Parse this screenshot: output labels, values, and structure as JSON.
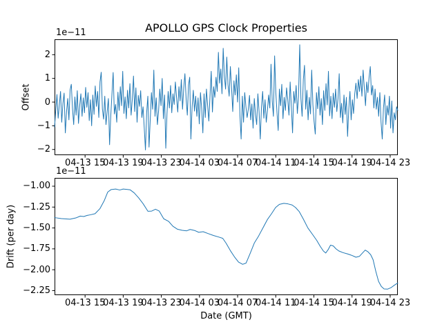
{
  "figure": {
    "background": "#ffffff",
    "line_color": "#1f77b4",
    "spine_color": "#000000"
  },
  "chart_data": [
    {
      "type": "line",
      "id": "offset",
      "title": "APOLLO GPS Clock Properties",
      "ylabel": "Offset",
      "xlabel": "",
      "y_offset_text": "1e−11",
      "y_unit": "1e-11",
      "xlim_hours": [
        11.8,
        47.8
      ],
      "ylim": [
        -2.24,
        2.65
      ],
      "grid": false,
      "legend": "none",
      "y_ticks": [
        {
          "v": 2,
          "label": "2"
        },
        {
          "v": 1,
          "label": "1"
        },
        {
          "v": 0,
          "label": "0"
        },
        {
          "v": -1,
          "label": "−1"
        },
        {
          "v": -2,
          "label": "−2"
        }
      ],
      "x_ticks": [
        {
          "v": 15,
          "label": "04-13 15"
        },
        {
          "v": 19,
          "label": "04-13 19"
        },
        {
          "v": 23,
          "label": "04-13 23"
        },
        {
          "v": 27,
          "label": "04-14 03"
        },
        {
          "v": 31,
          "label": "04-14 07"
        },
        {
          "v": 35,
          "label": "04-14 11"
        },
        {
          "v": 39,
          "label": "04-14 15"
        },
        {
          "v": 43,
          "label": "04-14 19"
        },
        {
          "v": 47,
          "label": "04-14 23"
        }
      ],
      "values_note": "offset in 1e-11 s, evenly spaced 04-13 ~11:50 to 04-14 ~23:50 GMT",
      "values": [
        -1.05,
        -0.35,
        0.32,
        -0.68,
        -0.12,
        0.45,
        -0.85,
        -0.05,
        0.38,
        -1.3,
        -0.42,
        0.15,
        -0.75,
        0.52,
        0.75,
        -0.28,
        -0.95,
        0.22,
        -0.55,
        0.48,
        -0.9,
        -0.15,
        0.35,
        -0.6,
        0.18,
        -0.45,
        0.62,
        -0.22,
        0.4,
        -0.78,
        0.1,
        -1.0,
        0.3,
        -0.52,
        0.68,
        -0.18,
        0.45,
        -0.65,
        0.85,
        1.26,
        -0.3,
        -0.72,
        0.25,
        -0.95,
        -0.4,
        0.15,
        -1.8,
        -0.58,
        0.35,
        1.25,
        -0.5,
        -0.1,
        -0.85,
        0.42,
        -0.35,
        0.65,
        -0.15,
        1.3,
        -0.48,
        0.22,
        -0.7,
        0.5,
        -0.25,
        0.78,
        -0.55,
        0.12,
        1.1,
        -0.4,
        0.6,
        -0.85,
        0.28,
        -0.18,
        0.48,
        -0.65,
        -0.2,
        -1.1,
        -2.02,
        -0.45,
        0.25,
        -1.9,
        -0.75,
        0.4,
        -0.3,
        1.35,
        -0.6,
        0.18,
        -0.95,
        -0.35,
        0.55,
        -0.15,
        1.0,
        -0.7,
        0.3,
        -1.95,
        -0.5,
        0.45,
        -0.25,
        0.7,
        -0.45,
        0.35,
        -0.1,
        0.85,
        0.2,
        -0.42,
        0.65,
        0.05,
        0.95,
        -0.3,
        0.58,
        1.2,
        0.15,
        -0.55,
        0.72,
        1.05,
        -1.56,
        -0.2,
        0.5,
        -0.38,
        0.25,
        -0.6,
        0.18,
        -0.92,
        0.4,
        -0.28,
        -1.3,
        0.35,
        -0.65,
        0.55,
        -0.15,
        -0.8,
        0.3,
        1.3,
        -0.42,
        0.65,
        0.2,
        1.05,
        0.45,
        2.1,
        0.8,
        1.4,
        0.35,
        2.27,
        1.1,
        0.55,
        1.9,
        0.75,
        0.25,
        1.5,
        0.6,
        -0.4,
        0.9,
        0.3,
        1.15,
        0.0,
        1.45,
        -0.55,
        -1.56,
        0.25,
        -0.85,
        0.4,
        -0.2,
        -0.65,
        -0.3,
        0.28,
        -0.75,
        -0.08,
        -1.1,
        0.15,
        -0.52,
        -0.95,
        0.35,
        -0.4,
        -1.56,
        -0.22,
        0.45,
        -0.68,
        0.1,
        -0.85,
        -0.35,
        0.3,
        -0.25,
        1.6,
        0.05,
        -0.6,
        1.95,
        0.4,
        -0.45,
        -1.2,
        0.55,
        -0.15,
        0.75,
        -0.7,
        0.2,
        -0.35,
        0.6,
        0.1,
        -0.55,
        0.85,
        -0.2,
        -1.3,
        0.45,
        -0.05,
        0.7,
        -0.48,
        0.25,
        2.42,
        0.15,
        -0.6,
        0.95,
        1.55,
        -0.3,
        0.5,
        -0.75,
        0.2,
        -0.5,
        1.35,
        -0.1,
        -0.82,
        -1.35,
        0.4,
        -0.28,
        0.65,
        -0.55,
        0.15,
        -0.95,
        0.48,
        -0.35,
        0.78,
        -0.12,
        1.3,
        -0.58,
        0.25,
        -0.7,
        0.38,
        -0.22,
        0.55,
        -0.4,
        0.15,
        1.2,
        -0.65,
        -0.05,
        -0.88,
        0.3,
        -0.52,
        0.2,
        -1.45,
        -0.3,
        0.45,
        -0.75,
        0.1,
        -0.48,
        0.35,
        0.8,
        0.15,
        0.95,
        0.45,
        1.1,
        0.25,
        1.35,
        0.6,
        -0.15,
        0.85,
        0.4,
        1.05,
        1.5,
        0.3,
        0.7,
        -0.25,
        0.55,
        -0.3,
        0.2,
        -0.6,
        0.4,
        -0.85,
        -1.56,
        -0.25,
        0.3,
        -0.95,
        -0.15,
        -0.55,
        0.25,
        -1.1,
        0.05,
        -1.3,
        -0.45,
        -0.75,
        -0.2,
        -0.35
      ]
    },
    {
      "type": "line",
      "id": "drift",
      "title": "",
      "ylabel": "Drift (per day)",
      "xlabel": "Date (GMT)",
      "y_offset_text": "1e−11",
      "y_unit": "1e-11",
      "xlim_hours": [
        11.8,
        47.8
      ],
      "ylim": [
        -2.304,
        -0.901
      ],
      "grid": false,
      "legend": "none",
      "y_ticks": [
        {
          "v": -1.0,
          "label": "−1.00"
        },
        {
          "v": -1.25,
          "label": "−1.25"
        },
        {
          "v": -1.5,
          "label": "−1.50"
        },
        {
          "v": -1.75,
          "label": "−1.75"
        },
        {
          "v": -2.0,
          "label": "−2.00"
        },
        {
          "v": -2.25,
          "label": "−2.25"
        }
      ],
      "x_ticks": [
        {
          "v": 15,
          "label": "04-13 15"
        },
        {
          "v": 19,
          "label": "04-13 19"
        },
        {
          "v": 23,
          "label": "04-13 23"
        },
        {
          "v": 27,
          "label": "04-14 03"
        },
        {
          "v": 31,
          "label": "04-14 07"
        },
        {
          "v": 35,
          "label": "04-14 11"
        },
        {
          "v": 39,
          "label": "04-14 15"
        },
        {
          "v": 43,
          "label": "04-14 19"
        },
        {
          "v": 47,
          "label": "04-14 23"
        }
      ],
      "points_note": "drift in 1e-11 per day; x as fraction of 36 h span 04-13 ~11:50 to 04-14 ~23:50 GMT",
      "points": [
        [
          0.0,
          -1.376
        ],
        [
          0.02,
          -1.388
        ],
        [
          0.045,
          -1.395
        ],
        [
          0.062,
          -1.38
        ],
        [
          0.075,
          -1.358
        ],
        [
          0.085,
          -1.363
        ],
        [
          0.095,
          -1.35
        ],
        [
          0.105,
          -1.342
        ],
        [
          0.118,
          -1.329
        ],
        [
          0.132,
          -1.27
        ],
        [
          0.145,
          -1.171
        ],
        [
          0.155,
          -1.07
        ],
        [
          0.165,
          -1.04
        ],
        [
          0.178,
          -1.034
        ],
        [
          0.19,
          -1.046
        ],
        [
          0.2,
          -1.034
        ],
        [
          0.21,
          -1.038
        ],
        [
          0.22,
          -1.043
        ],
        [
          0.232,
          -1.08
        ],
        [
          0.245,
          -1.14
        ],
        [
          0.258,
          -1.21
        ],
        [
          0.272,
          -1.3
        ],
        [
          0.283,
          -1.298
        ],
        [
          0.294,
          -1.276
        ],
        [
          0.305,
          -1.298
        ],
        [
          0.318,
          -1.39
        ],
        [
          0.332,
          -1.42
        ],
        [
          0.345,
          -1.48
        ],
        [
          0.358,
          -1.515
        ],
        [
          0.372,
          -1.528
        ],
        [
          0.385,
          -1.534
        ],
        [
          0.395,
          -1.518
        ],
        [
          0.408,
          -1.53
        ],
        [
          0.42,
          -1.552
        ],
        [
          0.433,
          -1.545
        ],
        [
          0.448,
          -1.568
        ],
        [
          0.463,
          -1.59
        ],
        [
          0.478,
          -1.608
        ],
        [
          0.49,
          -1.624
        ],
        [
          0.5,
          -1.684
        ],
        [
          0.512,
          -1.77
        ],
        [
          0.524,
          -1.845
        ],
        [
          0.536,
          -1.908
        ],
        [
          0.548,
          -1.935
        ],
        [
          0.558,
          -1.92
        ],
        [
          0.57,
          -1.803
        ],
        [
          0.582,
          -1.68
        ],
        [
          0.594,
          -1.6
        ],
        [
          0.607,
          -1.5
        ],
        [
          0.62,
          -1.4
        ],
        [
          0.632,
          -1.33
        ],
        [
          0.644,
          -1.255
        ],
        [
          0.655,
          -1.218
        ],
        [
          0.668,
          -1.205
        ],
        [
          0.68,
          -1.212
        ],
        [
          0.692,
          -1.225
        ],
        [
          0.702,
          -1.255
        ],
        [
          0.713,
          -1.305
        ],
        [
          0.725,
          -1.395
        ],
        [
          0.738,
          -1.5
        ],
        [
          0.752,
          -1.58
        ],
        [
          0.764,
          -1.65
        ],
        [
          0.774,
          -1.72
        ],
        [
          0.783,
          -1.775
        ],
        [
          0.79,
          -1.8
        ],
        [
          0.797,
          -1.76
        ],
        [
          0.804,
          -1.706
        ],
        [
          0.812,
          -1.715
        ],
        [
          0.82,
          -1.75
        ],
        [
          0.828,
          -1.775
        ],
        [
          0.84,
          -1.795
        ],
        [
          0.853,
          -1.81
        ],
        [
          0.866,
          -1.828
        ],
        [
          0.878,
          -1.85
        ],
        [
          0.888,
          -1.84
        ],
        [
          0.897,
          -1.8
        ],
        [
          0.905,
          -1.765
        ],
        [
          0.913,
          -1.785
        ],
        [
          0.921,
          -1.82
        ],
        [
          0.928,
          -1.88
        ],
        [
          0.936,
          -2.02
        ],
        [
          0.944,
          -2.14
        ],
        [
          0.952,
          -2.2
        ],
        [
          0.96,
          -2.23
        ],
        [
          0.97,
          -2.232
        ],
        [
          0.98,
          -2.215
        ],
        [
          0.99,
          -2.185
        ],
        [
          1.0,
          -2.158
        ]
      ]
    }
  ]
}
